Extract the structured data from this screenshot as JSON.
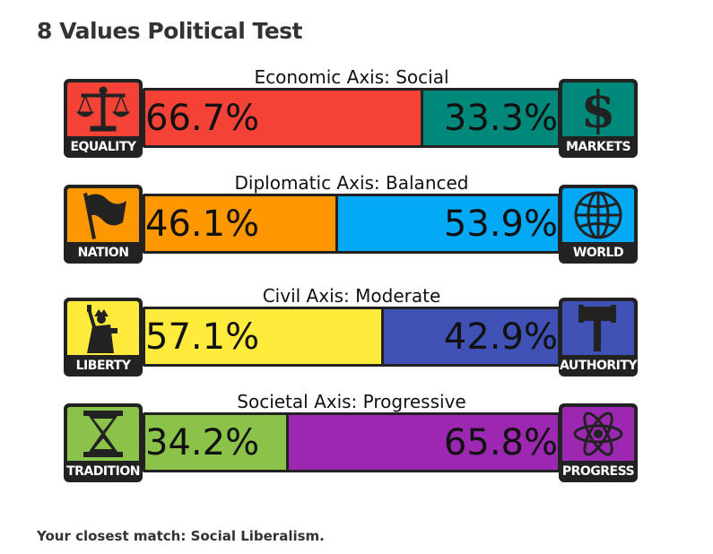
{
  "title": "8 Values Political Test",
  "axes": [
    {
      "label": "Economic Axis: Social",
      "left": {
        "name": "EQUALITY",
        "icon": "scales-icon",
        "color": "#f44336",
        "percent": 66.7,
        "text": "66.7%"
      },
      "right": {
        "name": "MARKETS",
        "icon": "dollar-icon",
        "color": "#00897b",
        "percent": 33.3,
        "text": "33.3%"
      }
    },
    {
      "label": "Diplomatic Axis: Balanced",
      "left": {
        "name": "NATION",
        "icon": "flag-icon",
        "color": "#ff9800",
        "percent": 46.1,
        "text": "46.1%"
      },
      "right": {
        "name": "WORLD",
        "icon": "globe-icon",
        "color": "#03a9f4",
        "percent": 53.9,
        "text": "53.9%"
      }
    },
    {
      "label": "Civil Axis: Moderate",
      "left": {
        "name": "LIBERTY",
        "icon": "statue-of-liberty-icon",
        "color": "#ffeb3b",
        "percent": 57.1,
        "text": "57.1%"
      },
      "right": {
        "name": "AUTHORITY",
        "icon": "gavel-icon",
        "color": "#3f51b5",
        "percent": 42.9,
        "text": "42.9%"
      }
    },
    {
      "label": "Societal Axis: Progressive",
      "left": {
        "name": "TRADITION",
        "icon": "hourglass-icon",
        "color": "#8bc34a",
        "percent": 34.2,
        "text": "34.2%"
      },
      "right": {
        "name": "PROGRESS",
        "icon": "atom-icon",
        "color": "#9c27b0",
        "percent": 65.8,
        "text": "65.8%"
      }
    }
  ],
  "closest_match": "Your closest match: Social Liberalism."
}
